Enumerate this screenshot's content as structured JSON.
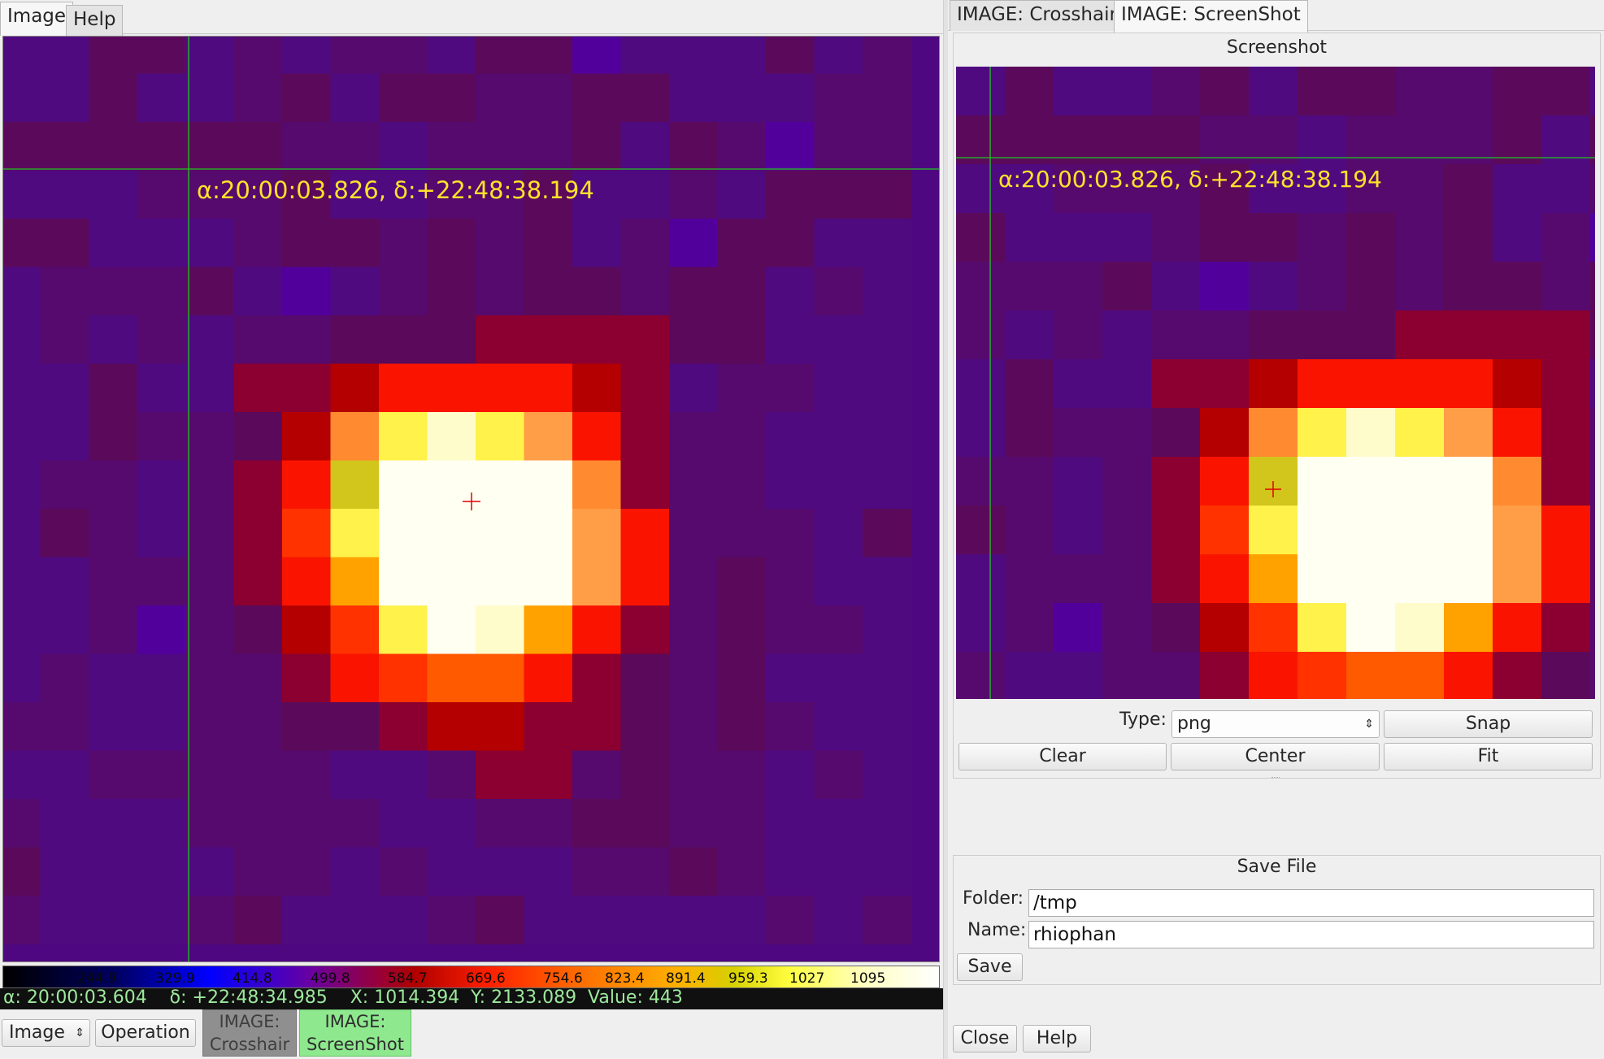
{
  "left_tabs": [
    {
      "label": "Image",
      "active": true
    },
    {
      "label": "Help",
      "active": false
    }
  ],
  "right_tabs": [
    {
      "label": "IMAGE: Crosshair",
      "active": false
    },
    {
      "label": "IMAGE: ScreenShot",
      "active": true
    }
  ],
  "viewer": {
    "coordinate_label": "α:20:00:03.826, δ:+22:48:38.194",
    "pixel_grid": [
      "nnddnmnmmnddpnnndnm",
      "nndnnmdnddmmddnnnmm",
      "ddddddmmnmmmdndmpmm",
      "nnnmmmdnnmmdnnmnddd",
      "ddnnnmddmdmdnmpddnn",
      "nmmmdnpnmdmddmddnmn",
      "nmnmnmmdddwwwwddnnn",
      "nndnnwwXRRRRXwnmmnn",
      "nndmmdXOYCYTRwmmnnn",
      "nmmnmwRGWWWWOwmmnnn",
      "ndmnmwrYWWWWTRmmmnd",
      "nnmmmwRAWWWWTRmdmnn",
      "nnmpmdXrYWCARwmdmmn",
      "nmnnmmwRrHHRwdmdnnn",
      "mmnnmmddwXXwwdmdmnn",
      "nnmmmmmnnmwwmdmmnmn",
      "mnnnmmmmnnmmddmmnnn",
      "dnnnnmmnmnnnmmdmnnn",
      "mnnnmdnnnmdnnnnnmnm"
    ],
    "palette": {
      "n": "#4f0a80",
      "p": "#52009c",
      "m": "#560a6e",
      "d": "#5b0a5b",
      "w": "#8b0030",
      "X": "#b40000",
      "R": "#fa1400",
      "r": "#ff3200",
      "H": "#ff5a00",
      "O": "#ff8a30",
      "T": "#ff9e47",
      "Y": "#fff24a",
      "G": "#d2c51b",
      "A": "#ffa200",
      "C": "#fffccc",
      "W": "#fffff2"
    }
  },
  "colorbar": {
    "ticks": [
      "244.9",
      "329.9",
      "414.8",
      "499.8",
      "584.7",
      "669.6",
      "754.6",
      "823.4",
      "891.4",
      "959.3",
      "1027",
      "1095"
    ]
  },
  "status_bar": {
    "text": "α: 20:00:03.604    δ: +22:48:34.985    X: 1014.394  Y: 2133.089  Value: 443"
  },
  "bottom_controls": {
    "image_menu": "Image",
    "operation_button": "Operation",
    "crosshair_button": "IMAGE:\nCrosshair",
    "screenshot_button": "IMAGE:\nScreenShot"
  },
  "screenshot_panel": {
    "title": "Screenshot",
    "type_label": "Type:",
    "type_value": "png",
    "snap": "Snap",
    "clear": "Clear",
    "center": "Center",
    "fit": "Fit"
  },
  "save_file": {
    "title": "Save File",
    "folder_label": "Folder:",
    "folder_value": "/tmp",
    "name_label": "Name:",
    "name_value": "rhiophan",
    "save": "Save"
  },
  "footer": {
    "close": "Close",
    "help": "Help"
  },
  "colors": {
    "crosshair": "#1ec81e",
    "marker": "#e00000",
    "coordinate_label": "#ffe22a",
    "status_text": "#9ce89c",
    "screenshot_button_bg": "#8ee88e",
    "crosshair_button_bg": "#8f8f8f"
  }
}
